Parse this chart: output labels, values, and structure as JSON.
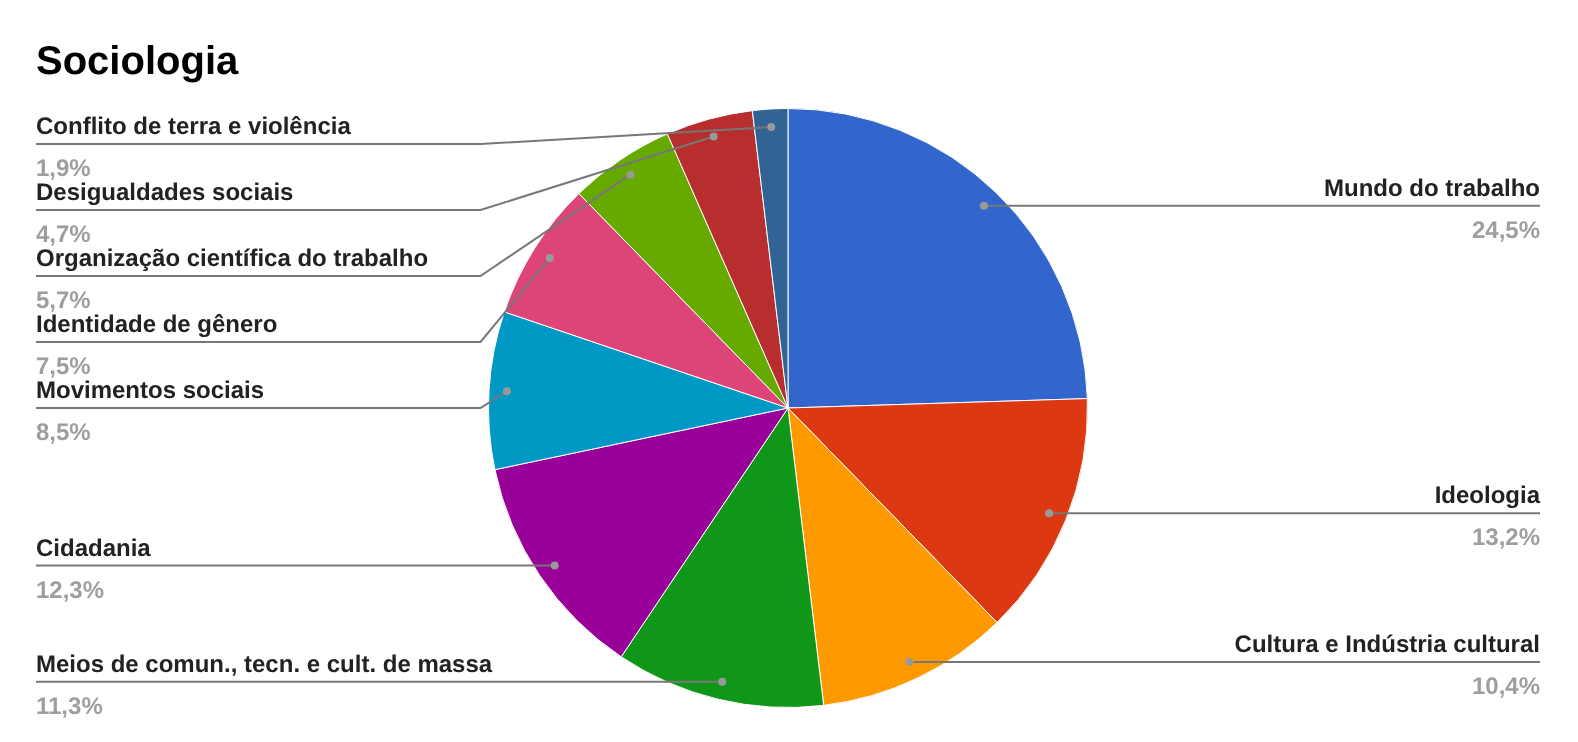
{
  "chart_data": {
    "type": "pie",
    "title": "Sociologia",
    "categories": [
      "Mundo do trabalho",
      "Ideologia",
      "Cultura e Indústria cultural",
      "Meios de comun., tecn. e cult. de massa",
      "Cidadania",
      "Movimentos sociais",
      "Identidade de gênero",
      "Organização científica do trabalho",
      "Desigualdades sociais",
      "Conflito de terra e violência"
    ],
    "values": [
      24.5,
      13.2,
      10.4,
      11.3,
      12.3,
      8.5,
      7.5,
      5.7,
      4.7,
      1.9
    ],
    "colors": [
      "#3366cc",
      "#dc3912",
      "#ff9900",
      "#109618",
      "#990099",
      "#0099c6",
      "#dd4477",
      "#66aa00",
      "#b82e2e",
      "#316395"
    ],
    "value_labels": [
      "24,5%",
      "13,2%",
      "10,4%",
      "11,3%",
      "12,3%",
      "8,5%",
      "7,5%",
      "5,7%",
      "4,7%",
      "1,9%"
    ]
  }
}
